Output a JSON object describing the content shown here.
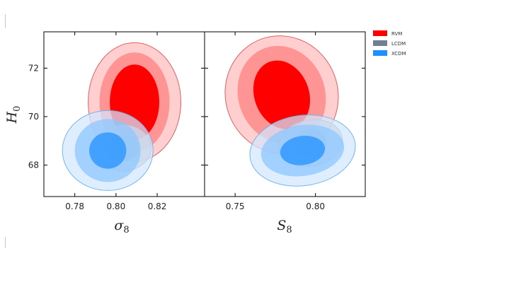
{
  "chart_data": {
    "type": "contour",
    "yaxis": {
      "label_main": "H",
      "label_sub": "0",
      "ticks": [
        68,
        70,
        72
      ],
      "tick_labels": [
        "68",
        "70",
        "72"
      ],
      "ylim": [
        66.7,
        73.5
      ]
    },
    "panels": [
      {
        "xlabel_main": "σ",
        "xlabel_sub": "8",
        "xlim": [
          0.765,
          0.843
        ],
        "ticks": [
          0.78,
          0.8,
          0.82
        ],
        "tick_labels": [
          "0.78",
          "0.80",
          "0.82"
        ],
        "series": [
          {
            "name": "RVM",
            "center": [
              0.809,
              70.6
            ],
            "levels": [
              {
                "rx": 0.012,
                "ry": 1.55,
                "tilt": 0
              },
              {
                "rx": 0.017,
                "ry": 2.05,
                "tilt": 0
              },
              {
                "rx": 0.0225,
                "ry": 2.45,
                "tilt": 0
              }
            ]
          },
          {
            "name": "LCDM",
            "center": [
              0.803,
              68.7
            ],
            "levels": [
              {
                "rx": 0.008,
                "ry": 0.55,
                "tilt": 0
              },
              {
                "rx": 0.014,
                "ry": 0.95,
                "tilt": 0
              }
            ]
          },
          {
            "name": "XCDM",
            "center": [
              0.796,
              68.6
            ],
            "levels": [
              {
                "rx": 0.009,
                "ry": 0.75,
                "tilt": 0
              },
              {
                "rx": 0.016,
                "ry": 1.3,
                "tilt": 0
              },
              {
                "rx": 0.022,
                "ry": 1.65,
                "tilt": 0
              }
            ]
          }
        ]
      },
      {
        "xlabel_main": "S",
        "xlabel_sub": "8",
        "xlim": [
          0.731,
          0.831
        ],
        "ticks": [
          0.75,
          0.8
        ],
        "tick_labels": [
          "0.75",
          "0.80"
        ],
        "series": [
          {
            "name": "RVM",
            "center": [
              0.779,
              70.9
            ],
            "levels": [
              {
                "rx": 0.017,
                "ry": 1.45,
                "tilt": -0.5
              },
              {
                "rx": 0.027,
                "ry": 2.05,
                "tilt": -0.5
              },
              {
                "rx": 0.035,
                "ry": 2.45,
                "tilt": -0.5
              }
            ]
          },
          {
            "name": "LCDM",
            "center": [
              0.797,
              68.9
            ],
            "levels": [
              {
                "rx": 0.01,
                "ry": 0.6,
                "tilt": -0.3
              },
              {
                "rx": 0.02,
                "ry": 0.95,
                "tilt": -0.3
              }
            ]
          },
          {
            "name": "XCDM",
            "center": [
              0.792,
              68.6
            ],
            "levels": [
              {
                "rx": 0.014,
                "ry": 0.6,
                "tilt": -0.2
              },
              {
                "rx": 0.026,
                "ry": 1.05,
                "tilt": -0.2
              },
              {
                "rx": 0.033,
                "ry": 1.45,
                "tilt": -0.2
              }
            ]
          }
        ]
      }
    ],
    "legend": {
      "placement": "top-right",
      "entries": [
        {
          "label": "RVM",
          "color": "#ff0000"
        },
        {
          "label": "LCDM",
          "color": "#708090"
        },
        {
          "label": "XCDM",
          "color": "#1e90ff"
        }
      ]
    },
    "colors": {
      "RVM": [
        "#ff0000",
        "#ff9494",
        "#ffcfcf"
      ],
      "LCDM": [
        "#708090",
        "#b0bac4"
      ],
      "XCDM": [
        "#1e90ff",
        "#8cc6ff",
        "#d2e8ff"
      ],
      "RVM_edge": "#e06060",
      "LCDM_edge": "#8a96a4",
      "XCDM_edge": "#74b4ee"
    },
    "grid": false
  }
}
